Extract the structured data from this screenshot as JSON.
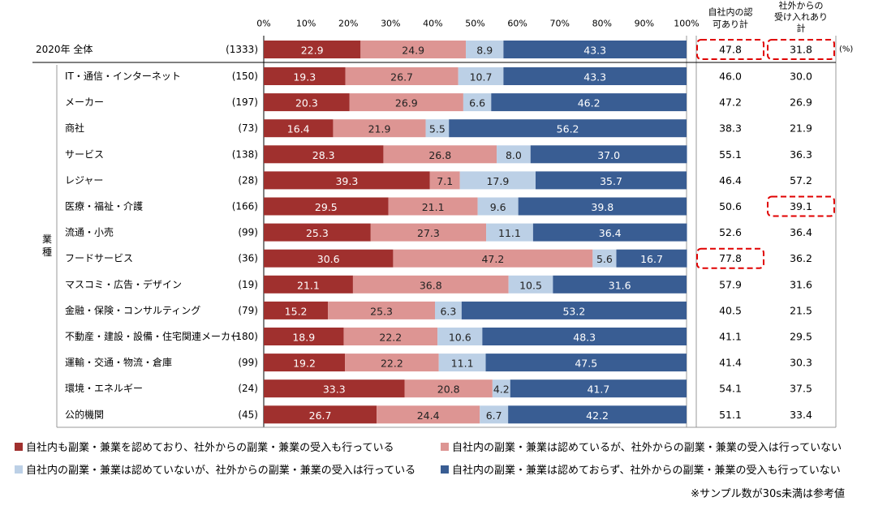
{
  "chart_data": {
    "type": "bar",
    "orientation": "horizontal",
    "stacked": true,
    "xlim": [
      0,
      100
    ],
    "x_ticks": [
      "0%",
      "10%",
      "20%",
      "30%",
      "40%",
      "50%",
      "60%",
      "70%",
      "80%",
      "90%",
      "100%"
    ],
    "column_headers": {
      "approve": "自社内の認可あり計",
      "accept": "社外からの受け入れあり計"
    },
    "unit_label": "(%)",
    "group_label": "業種",
    "total_row": {
      "label": "2020年 全体",
      "n": "(1333)",
      "values": [
        22.9,
        24.9,
        8.9,
        43.3
      ],
      "approve": "47.8",
      "accept": "31.8"
    },
    "categories": [
      {
        "label": "IT・通信・インターネット",
        "n": "(150)",
        "values": [
          19.3,
          26.7,
          10.7,
          43.3
        ],
        "approve": "46.0",
        "accept": "30.0"
      },
      {
        "label": "メーカー",
        "n": "(197)",
        "values": [
          20.3,
          26.9,
          6.6,
          46.2
        ],
        "approve": "47.2",
        "accept": "26.9"
      },
      {
        "label": "商社",
        "n": "(73)",
        "values": [
          16.4,
          21.9,
          5.5,
          56.2
        ],
        "approve": "38.3",
        "accept": "21.9"
      },
      {
        "label": "サービス",
        "n": "(138)",
        "values": [
          28.3,
          26.8,
          8.0,
          37.0
        ],
        "approve": "55.1",
        "accept": "36.3"
      },
      {
        "label": "レジャー",
        "n": "(28)",
        "values": [
          39.3,
          7.1,
          17.9,
          35.7
        ],
        "approve": "46.4",
        "accept": "57.2"
      },
      {
        "label": "医療・福祉・介護",
        "n": "(166)",
        "values": [
          29.5,
          21.1,
          9.6,
          39.8
        ],
        "approve": "50.6",
        "accept": "39.1"
      },
      {
        "label": "流通・小売",
        "n": "(99)",
        "values": [
          25.3,
          27.3,
          11.1,
          36.4
        ],
        "approve": "52.6",
        "accept": "36.4"
      },
      {
        "label": "フードサービス",
        "n": "(36)",
        "values": [
          30.6,
          47.2,
          5.6,
          16.7
        ],
        "approve": "77.8",
        "accept": "36.2"
      },
      {
        "label": "マスコミ・広告・デザイン",
        "n": "(19)",
        "values": [
          21.1,
          36.8,
          10.5,
          31.6
        ],
        "approve": "57.9",
        "accept": "31.6"
      },
      {
        "label": "金融・保険・コンサルティング",
        "n": "(79)",
        "values": [
          15.2,
          25.3,
          6.3,
          53.2
        ],
        "approve": "40.5",
        "accept": "21.5"
      },
      {
        "label": "不動産・建設・設備・住宅関連メーカー",
        "n": "(180)",
        "values": [
          18.9,
          22.2,
          10.6,
          48.3
        ],
        "approve": "41.1",
        "accept": "29.5"
      },
      {
        "label": "運輸・交通・物流・倉庫",
        "n": "(99)",
        "values": [
          19.2,
          22.2,
          11.1,
          47.5
        ],
        "approve": "41.4",
        "accept": "30.3"
      },
      {
        "label": "環境・エネルギー",
        "n": "(24)",
        "values": [
          33.3,
          20.8,
          4.2,
          41.7
        ],
        "approve": "54.1",
        "accept": "37.5"
      },
      {
        "label": "公的機関",
        "n": "(45)",
        "values": [
          26.7,
          24.4,
          6.7,
          42.2
        ],
        "approve": "51.1",
        "accept": "33.4"
      }
    ],
    "series": [
      {
        "name": "自社内も副業・兼業を認めており、社外からの副業・兼業の受入も行っている",
        "color": "#a0302e"
      },
      {
        "name": "自社内の副業・兼業は認めているが、社外からの副業・兼業の受入は行っていない",
        "color": "#dd9593"
      },
      {
        "name": "自社内の副業・兼業は認めていないが、社外からの副業・兼業の受入は行っている",
        "color": "#bcd0e6"
      },
      {
        "name": "自社内の副業・兼業は認めておらず、社外からの副業・兼業の受入も行っていない",
        "color": "#395d93"
      }
    ],
    "highlights": [
      {
        "row": "total",
        "column": "approve"
      },
      {
        "row": "total",
        "column": "accept"
      },
      {
        "row": "医療・福祉・介護",
        "column": "accept"
      },
      {
        "row": "フードサービス",
        "column": "approve"
      }
    ],
    "footnote": "※サンプル数が30s未満は参考値"
  }
}
